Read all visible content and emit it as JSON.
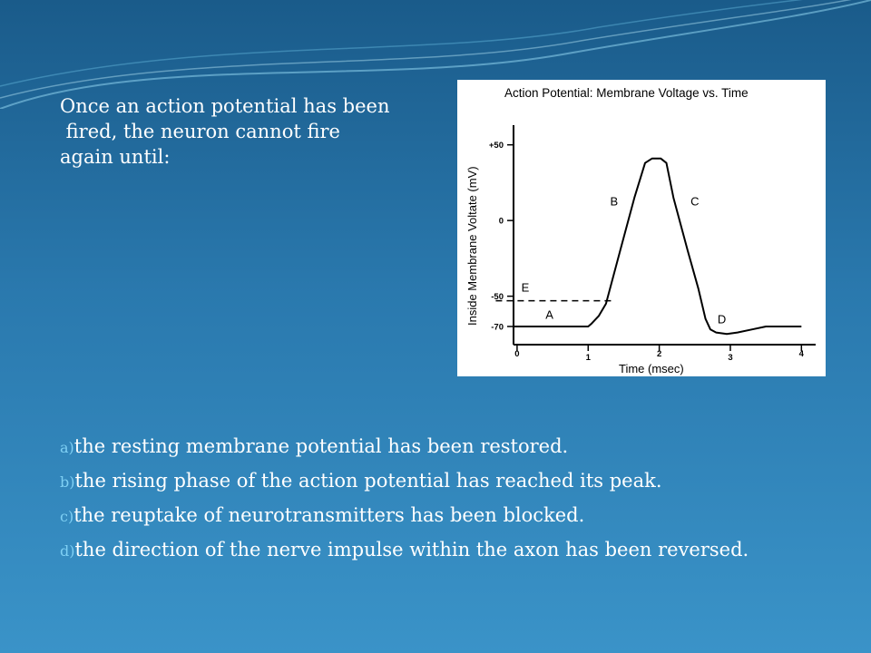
{
  "question": {
    "lines": [
      "Once an action potential has been",
      " fired, the neuron cannot fire",
      "again until:"
    ]
  },
  "options": [
    {
      "letter": "a)",
      "text": "the resting membrane potential has been restored."
    },
    {
      "letter": "b)",
      "text": "the rising phase of the action potential has reached its peak."
    },
    {
      "letter": "c)",
      "text": "the reuptake of neurotransmitters has been blocked."
    },
    {
      "letter": "d)",
      "text": "the direction of the nerve impulse within the axon has been reversed."
    }
  ],
  "colors": {
    "background_top": "#1a5b8a",
    "background_bottom": "#3a93c8",
    "option_letter": "#7fd0f4",
    "text": "#ffffff",
    "curve": "#000000"
  },
  "chart_data": {
    "type": "line",
    "title": "Action Potential: Membrane Voltage vs. Time",
    "xlabel": "Time (msec)",
    "ylabel": "Inside Membrane Voltate (mV)",
    "xlim": [
      -0.05,
      4.2
    ],
    "ylim": [
      -82,
      63
    ],
    "x_ticks": [
      {
        "v": 0,
        "label": "0"
      },
      {
        "v": 1,
        "label": "1"
      },
      {
        "v": 2,
        "label": "2"
      },
      {
        "v": 3,
        "label": "3"
      },
      {
        "v": 4,
        "label": "4"
      }
    ],
    "y_ticks": [
      {
        "v": 50,
        "label": "+50"
      },
      {
        "v": 0,
        "label": "0"
      },
      {
        "v": -50,
        "label": "-50"
      },
      {
        "v": -70,
        "label": "-70"
      }
    ],
    "series": [
      {
        "x": [
          -0.05,
          1.0,
          1.05,
          1.15,
          1.25,
          1.45,
          1.65,
          1.8,
          1.9,
          2.02,
          2.1,
          2.2,
          2.4,
          2.55,
          2.65,
          2.72,
          2.8,
          2.95,
          3.1,
          3.3,
          3.5,
          4.0
        ],
        "y": [
          -70,
          -70,
          -68,
          -63,
          -55,
          -20,
          15,
          38,
          41,
          41,
          38,
          15,
          -20,
          -45,
          -65,
          -72,
          -74,
          -75,
          -74,
          -72,
          -70,
          -70
        ]
      }
    ],
    "threshold": {
      "y": -53,
      "x_start": -0.3,
      "x_end": 1.35
    },
    "annotations": [
      {
        "text": "A",
        "x": 0.4,
        "y": -65
      },
      {
        "text": "B",
        "x": 1.31,
        "y": 10
      },
      {
        "text": "C",
        "x": 2.44,
        "y": 10
      },
      {
        "text": "D",
        "x": 2.82,
        "y": -68
      },
      {
        "text": "E",
        "x": 0.06,
        "y": -47
      }
    ]
  }
}
